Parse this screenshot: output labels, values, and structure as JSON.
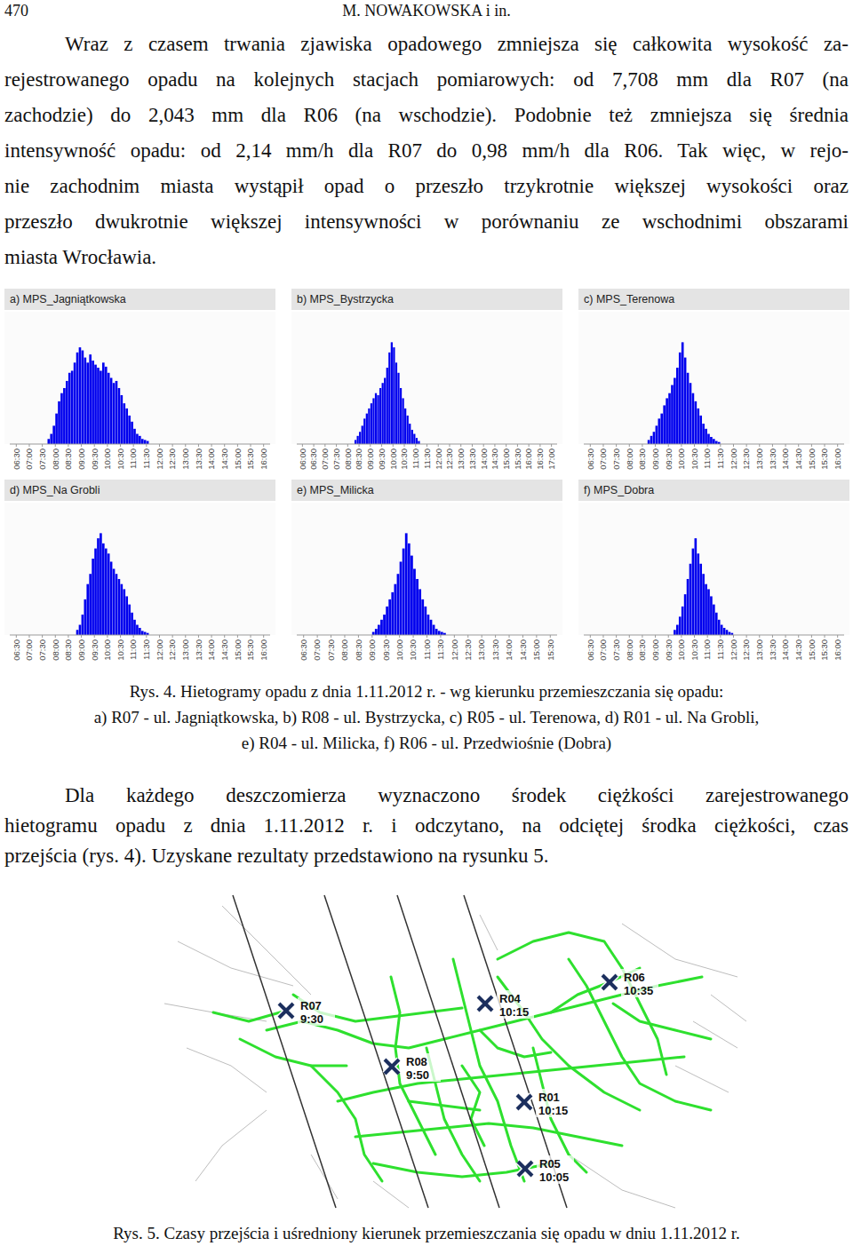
{
  "header": {
    "page_number": "470",
    "running_title": "M. NOWAKOWSKA i in."
  },
  "paragraph_1": {
    "lines": [
      "Wraz z czasem trwania zjawiska opadowego zmniejsza się całkowita wysokość za-",
      "rejestrowanego opadu na kolejnych stacjach pomiarowych: od 7,708 mm dla R07 (na",
      "zachodzie) do 2,043 mm dla R06 (na wschodzie). Podobnie też zmniejsza się średnia",
      "intensywność opadu: od 2,14 mm/h dla R07 do 0,98 mm/h dla R06. Tak więc, w rejo-",
      "nie zachodnim miasta wystąpił opad o przeszło trzykrotnie większej wysokości oraz",
      "przeszło dwukrotnie większej intensywności w porównaniu ze wschodnimi obszarami",
      "miasta Wrocławia."
    ]
  },
  "chart_data": [
    {
      "type": "histogram",
      "title": "a) MPS_Jagniątkowska",
      "color": "#0000ee",
      "tick_labels": "x",
      "bins": [
        7.7,
        7.8,
        7.9,
        8.0,
        8.1,
        8.2,
        8.3,
        8.4,
        8.5,
        8.6,
        8.7,
        8.8,
        8.9,
        9.0,
        9.1,
        9.2,
        9.3,
        9.4,
        9.5,
        9.6,
        9.7,
        9.8,
        9.9,
        10.0,
        10.1,
        10.2,
        10.3,
        10.4,
        10.5,
        10.6,
        10.7,
        10.8,
        10.9,
        11.0,
        11.1,
        11.2,
        11.3,
        11.4,
        11.5,
        11.6
      ],
      "values": [
        5,
        10,
        18,
        30,
        42,
        50,
        55,
        62,
        70,
        72,
        80,
        90,
        95,
        92,
        85,
        80,
        88,
        82,
        78,
        75,
        72,
        80,
        76,
        70,
        65,
        60,
        62,
        55,
        48,
        40,
        35,
        28,
        22,
        15,
        10,
        8,
        5,
        4,
        3
      ],
      "xlim": [
        6.25,
        16.25
      ],
      "ylim": [
        0,
        130
      ],
      "xticks": [
        {
          "value": 6.5,
          "label": "06:30"
        },
        {
          "value": 7,
          "label": "07:00"
        },
        {
          "value": 7.5,
          "label": "07:30"
        },
        {
          "value": 8,
          "label": "08:00"
        },
        {
          "value": 8.5,
          "label": "08:30"
        },
        {
          "value": 9,
          "label": "09:00"
        },
        {
          "value": 9.5,
          "label": "09:30"
        },
        {
          "value": 10,
          "label": "10:00"
        },
        {
          "value": 10.5,
          "label": "10:30"
        },
        {
          "value": 11,
          "label": "11:00"
        },
        {
          "value": 11.5,
          "label": "11:30"
        },
        {
          "value": 12,
          "label": "12:00"
        },
        {
          "value": 12.5,
          "label": "12:30"
        },
        {
          "value": 13,
          "label": "13:00"
        },
        {
          "value": 13.5,
          "label": "13:30"
        },
        {
          "value": 14,
          "label": "14:00"
        },
        {
          "value": 14.5,
          "label": "14:30"
        },
        {
          "value": 15,
          "label": "15:00"
        },
        {
          "value": 15.5,
          "label": "15:30"
        },
        {
          "value": 16,
          "label": "16:00"
        }
      ]
    },
    {
      "type": "histogram",
      "title": "b) MPS_Bystrzycka",
      "color": "#0000ee",
      "tick_labels": "x",
      "bins": [
        8.3,
        8.4,
        8.5,
        8.6,
        8.7,
        8.8,
        8.9,
        9.0,
        9.1,
        9.2,
        9.3,
        9.4,
        9.5,
        9.6,
        9.7,
        9.8,
        9.9,
        10.0,
        10.1,
        10.2,
        10.3,
        10.4,
        10.5,
        10.6,
        10.7,
        10.8,
        10.9,
        11.0,
        11.1,
        11.2
      ],
      "values": [
        4,
        8,
        12,
        18,
        25,
        30,
        35,
        40,
        45,
        50,
        48,
        55,
        60,
        65,
        75,
        90,
        100,
        95,
        80,
        70,
        55,
        45,
        35,
        28,
        20,
        14,
        10,
        6,
        3
      ],
      "xlim": [
        5.75,
        17.25
      ],
      "ylim": [
        0,
        130
      ],
      "xticks": [
        {
          "value": 6,
          "label": "06:00"
        },
        {
          "value": 6.5,
          "label": "06:30"
        },
        {
          "value": 7,
          "label": "07:00"
        },
        {
          "value": 7.5,
          "label": "07:30"
        },
        {
          "value": 8,
          "label": "08:00"
        },
        {
          "value": 8.5,
          "label": "08:30"
        },
        {
          "value": 9,
          "label": "09:00"
        },
        {
          "value": 9.5,
          "label": "09:30"
        },
        {
          "value": 10,
          "label": "10:00"
        },
        {
          "value": 10.5,
          "label": "10:30"
        },
        {
          "value": 11,
          "label": "11:00"
        },
        {
          "value": 11.5,
          "label": "11:30"
        },
        {
          "value": 12,
          "label": "12:00"
        },
        {
          "value": 12.5,
          "label": "12:30"
        },
        {
          "value": 13,
          "label": "13:00"
        },
        {
          "value": 13.5,
          "label": "13:30"
        },
        {
          "value": 14,
          "label": "14:00"
        },
        {
          "value": 14.5,
          "label": "14:30"
        },
        {
          "value": 15,
          "label": "15:00"
        },
        {
          "value": 15.5,
          "label": "15:30"
        },
        {
          "value": 16,
          "label": "16:00"
        },
        {
          "value": 16.5,
          "label": "16:30"
        },
        {
          "value": 17,
          "label": "17:00"
        }
      ]
    },
    {
      "type": "histogram",
      "title": "c) MPS_Terenowa",
      "color": "#0000ee",
      "tick_labels": "x",
      "bins": [
        8.7,
        8.8,
        8.9,
        9.0,
        9.1,
        9.2,
        9.3,
        9.4,
        9.5,
        9.6,
        9.7,
        9.8,
        9.9,
        10.0,
        10.1,
        10.2,
        10.3,
        10.4,
        10.5,
        10.6,
        10.7,
        10.8,
        10.9,
        11.0,
        11.1,
        11.2,
        11.3,
        11.4,
        11.5
      ],
      "values": [
        4,
        8,
        12,
        18,
        25,
        30,
        38,
        45,
        50,
        58,
        65,
        75,
        90,
        100,
        85,
        70,
        60,
        50,
        42,
        35,
        28,
        20,
        15,
        10,
        7,
        5,
        3,
        2
      ],
      "xlim": [
        6.25,
        16.25
      ],
      "ylim": [
        0,
        130
      ],
      "xticks": [
        {
          "value": 6.5,
          "label": "06:30"
        },
        {
          "value": 7,
          "label": "07:00"
        },
        {
          "value": 7.5,
          "label": "07:30"
        },
        {
          "value": 8,
          "label": "08:00"
        },
        {
          "value": 8.5,
          "label": "08:30"
        },
        {
          "value": 9,
          "label": "09:00"
        },
        {
          "value": 9.5,
          "label": "09:30"
        },
        {
          "value": 10,
          "label": "10:00"
        },
        {
          "value": 10.5,
          "label": "10:30"
        },
        {
          "value": 11,
          "label": "11:00"
        },
        {
          "value": 11.5,
          "label": "11:30"
        },
        {
          "value": 12,
          "label": "12:00"
        },
        {
          "value": 12.5,
          "label": "12:30"
        },
        {
          "value": 13,
          "label": "13:00"
        },
        {
          "value": 13.5,
          "label": "13:30"
        },
        {
          "value": 14,
          "label": "14:00"
        },
        {
          "value": 14.5,
          "label": "14:30"
        },
        {
          "value": 15,
          "label": "15:00"
        },
        {
          "value": 15.5,
          "label": "15:30"
        },
        {
          "value": 16,
          "label": "16:00"
        }
      ]
    },
    {
      "type": "histogram",
      "title": "d) MPS_Na Grobli",
      "color": "#0000ee",
      "tick_labels": "x",
      "bins": [
        8.8,
        8.9,
        9.0,
        9.1,
        9.2,
        9.3,
        9.4,
        9.5,
        9.6,
        9.7,
        9.8,
        9.9,
        10.0,
        10.1,
        10.2,
        10.3,
        10.4,
        10.5,
        10.6,
        10.7,
        10.8,
        10.9,
        11.0,
        11.1,
        11.2,
        11.3,
        11.4,
        11.5,
        11.6
      ],
      "values": [
        5,
        10,
        20,
        35,
        50,
        60,
        75,
        85,
        95,
        100,
        90,
        85,
        80,
        72,
        65,
        60,
        55,
        50,
        45,
        38,
        30,
        22,
        15,
        10,
        7,
        4,
        3,
        2
      ],
      "xlim": [
        6.25,
        16.25
      ],
      "ylim": [
        0,
        130
      ],
      "xticks": [
        {
          "value": 6.5,
          "label": "06:30"
        },
        {
          "value": 7,
          "label": "07:00"
        },
        {
          "value": 7.5,
          "label": "07:30"
        },
        {
          "value": 8,
          "label": "08:00"
        },
        {
          "value": 8.5,
          "label": "08:30"
        },
        {
          "value": 9,
          "label": "09:00"
        },
        {
          "value": 9.5,
          "label": "09:30"
        },
        {
          "value": 10,
          "label": "10:00"
        },
        {
          "value": 10.5,
          "label": "10:30"
        },
        {
          "value": 11,
          "label": "11:00"
        },
        {
          "value": 11.5,
          "label": "11:30"
        },
        {
          "value": 12,
          "label": "12:00"
        },
        {
          "value": 12.5,
          "label": "12:30"
        },
        {
          "value": 13,
          "label": "13:00"
        },
        {
          "value": 13.5,
          "label": "13:30"
        },
        {
          "value": 14,
          "label": "14:00"
        },
        {
          "value": 14.5,
          "label": "14:30"
        },
        {
          "value": 15,
          "label": "15:00"
        },
        {
          "value": 15.5,
          "label": "15:30"
        },
        {
          "value": 16,
          "label": "16:00"
        }
      ]
    },
    {
      "type": "histogram",
      "title": "e) MPS_Milicka",
      "color": "#0000ee",
      "tick_labels": "x",
      "bins": [
        9.0,
        9.1,
        9.2,
        9.3,
        9.4,
        9.5,
        9.6,
        9.7,
        9.8,
        9.9,
        10.0,
        10.1,
        10.2,
        10.3,
        10.4,
        10.5,
        10.6,
        10.7,
        10.8,
        10.9,
        11.0,
        11.1,
        11.2,
        11.3,
        11.4,
        11.5,
        11.6,
        11.7
      ],
      "values": [
        3,
        6,
        10,
        15,
        20,
        28,
        35,
        42,
        50,
        60,
        72,
        85,
        100,
        90,
        78,
        65,
        55,
        45,
        35,
        28,
        20,
        15,
        10,
        6,
        4,
        3,
        2
      ],
      "xlim": [
        6.25,
        15.75
      ],
      "ylim": [
        0,
        130
      ],
      "xticks": [
        {
          "value": 6.5,
          "label": "06:30"
        },
        {
          "value": 7,
          "label": "07:00"
        },
        {
          "value": 7.5,
          "label": "07:30"
        },
        {
          "value": 8,
          "label": "08:00"
        },
        {
          "value": 8.5,
          "label": "08:30"
        },
        {
          "value": 9,
          "label": "09:00"
        },
        {
          "value": 9.5,
          "label": "09:30"
        },
        {
          "value": 10,
          "label": "10:00"
        },
        {
          "value": 10.5,
          "label": "10:30"
        },
        {
          "value": 11,
          "label": "11:00"
        },
        {
          "value": 11.5,
          "label": "11:30"
        },
        {
          "value": 12,
          "label": "12:00"
        },
        {
          "value": 12.5,
          "label": "12:30"
        },
        {
          "value": 13,
          "label": "13:00"
        },
        {
          "value": 13.5,
          "label": "13:30"
        },
        {
          "value": 14,
          "label": "14:00"
        },
        {
          "value": 14.5,
          "label": "14:30"
        },
        {
          "value": 15,
          "label": "15:00"
        },
        {
          "value": 15.5,
          "label": "15:30"
        }
      ]
    },
    {
      "type": "histogram",
      "title": "f) MPS_Dobra",
      "color": "#0000ee",
      "tick_labels": "x",
      "bins": [
        9.7,
        9.8,
        9.9,
        10.0,
        10.1,
        10.2,
        10.3,
        10.4,
        10.5,
        10.6,
        10.7,
        10.8,
        10.9,
        11.0,
        11.1,
        11.2,
        11.3,
        11.4,
        11.5,
        11.6,
        11.7,
        11.8,
        11.9,
        12.0
      ],
      "values": [
        5,
        10,
        18,
        28,
        40,
        55,
        70,
        85,
        95,
        80,
        70,
        60,
        50,
        45,
        38,
        30,
        22,
        15,
        10,
        7,
        5,
        3,
        2
      ],
      "xlim": [
        6.25,
        16.25
      ],
      "ylim": [
        0,
        130
      ],
      "xticks": [
        {
          "value": 6.5,
          "label": "06:30"
        },
        {
          "value": 7,
          "label": "07:00"
        },
        {
          "value": 7.5,
          "label": "07:30"
        },
        {
          "value": 8,
          "label": "08:00"
        },
        {
          "value": 8.5,
          "label": "08:30"
        },
        {
          "value": 9,
          "label": "09:00"
        },
        {
          "value": 9.5,
          "label": "09:30"
        },
        {
          "value": 10,
          "label": "10:00"
        },
        {
          "value": 10.5,
          "label": "10:30"
        },
        {
          "value": 11,
          "label": "11:00"
        },
        {
          "value": 11.5,
          "label": "11:30"
        },
        {
          "value": 12,
          "label": "12:00"
        },
        {
          "value": 12.5,
          "label": "12:30"
        },
        {
          "value": 13,
          "label": "13:00"
        },
        {
          "value": 13.5,
          "label": "13:30"
        },
        {
          "value": 14,
          "label": "14:00"
        },
        {
          "value": 14.5,
          "label": "14:30"
        },
        {
          "value": 15,
          "label": "15:00"
        },
        {
          "value": 15.5,
          "label": "15:30"
        },
        {
          "value": 16,
          "label": "16:00"
        }
      ]
    }
  ],
  "caption_4": {
    "lines": [
      "Rys. 4. Hietogramy opadu z dnia 1.11.2012 r. - wg kierunku przemieszczania się opadu:",
      "a) R07 - ul. Jagniątkowska, b) R08 - ul. Bystrzycka, c) R05 - ul. Terenowa,  d) R01 - ul. Na Grobli,",
      "e) R04 - ul. Milicka, f) R06 - ul. Przedwiośnie (Dobra)"
    ]
  },
  "paragraph_2": {
    "lines": [
      "Dla każdego deszczomierza wyznaczono środek ciężkości zarejestrowanego",
      "hietogramu opadu z dnia 1.11.2012 r. i odczytano, na odciętej środka ciężkości, czas",
      "przejścia (rys. 4). Uzyskane rezultaty przedstawiono na rysunku 5."
    ]
  },
  "map": {
    "stations": [
      {
        "id": "R07",
        "time": "9:30"
      },
      {
        "id": "R04",
        "time": "10:15"
      },
      {
        "id": "R06",
        "time": "10:35"
      },
      {
        "id": "R08",
        "time": "9:50"
      },
      {
        "id": "R01",
        "time": "10:15"
      },
      {
        "id": "R05",
        "time": "10:05"
      }
    ]
  },
  "caption_5": "Rys. 5. Czasy przejścia i uśredniony kierunek przemieszczania się opadu w dniu 1.11.2012 r."
}
